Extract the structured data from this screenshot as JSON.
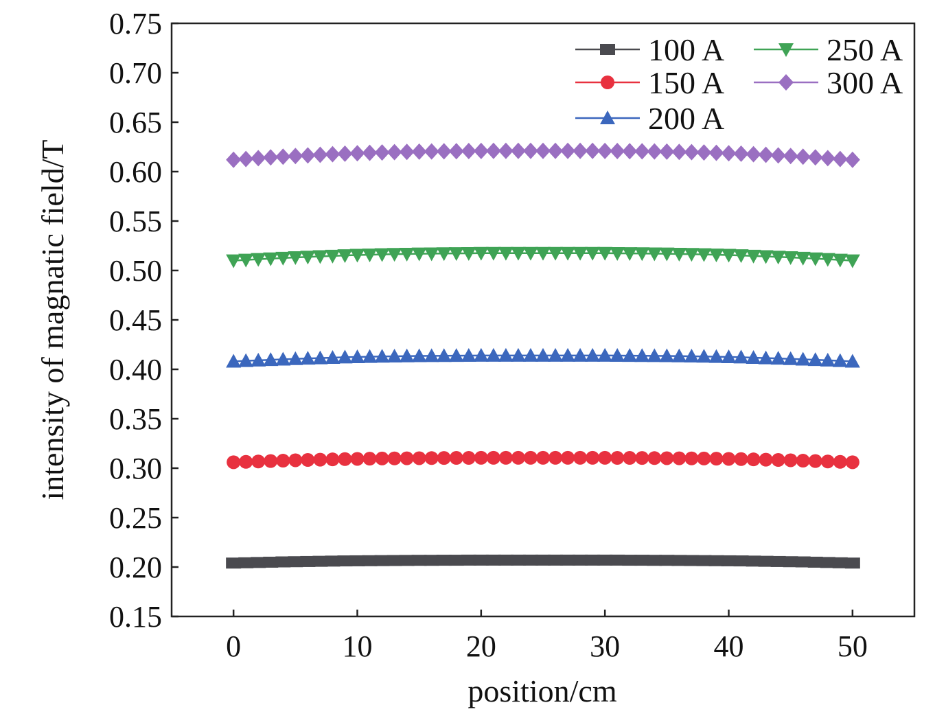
{
  "chart_data": {
    "type": "line",
    "title": "",
    "xlabel": "position/cm",
    "ylabel": "intensity of magnatic field/T",
    "xlim": [
      -5,
      55
    ],
    "ylim": [
      0.15,
      0.75
    ],
    "xticks": [
      0,
      10,
      20,
      30,
      40,
      50
    ],
    "xtick_labels": [
      "0",
      "10",
      "20",
      "30",
      "40",
      "50"
    ],
    "yticks": [
      0.15,
      0.2,
      0.25,
      0.3,
      0.35,
      0.4,
      0.45,
      0.5,
      0.55,
      0.6,
      0.65,
      0.7,
      0.75
    ],
    "ytick_labels": [
      "0.15",
      "0.20",
      "0.25",
      "0.30",
      "0.35",
      "0.40",
      "0.45",
      "0.50",
      "0.55",
      "0.60",
      "0.65",
      "0.70",
      "0.75"
    ],
    "grid": false,
    "legend_position": "top-right",
    "x": [
      0,
      1,
      2,
      3,
      4,
      5,
      6,
      7,
      8,
      9,
      10,
      11,
      12,
      13,
      14,
      15,
      16,
      17,
      18,
      19,
      20,
      21,
      22,
      23,
      24,
      25,
      26,
      27,
      28,
      29,
      30,
      31,
      32,
      33,
      34,
      35,
      36,
      37,
      38,
      39,
      40,
      41,
      42,
      43,
      44,
      45,
      46,
      47,
      48,
      49,
      50
    ],
    "series": [
      {
        "name": "100 A",
        "color": "#4a4a4f",
        "marker": "square",
        "values": [
          0.204,
          0.2043,
          0.2046,
          0.2049,
          0.2052,
          0.2054,
          0.2056,
          0.2058,
          0.206,
          0.2062,
          0.2063,
          0.2064,
          0.2065,
          0.2066,
          0.2067,
          0.2068,
          0.2068,
          0.2069,
          0.2069,
          0.207,
          0.207,
          0.207,
          0.207,
          0.207,
          0.207,
          0.207,
          0.207,
          0.207,
          0.207,
          0.207,
          0.207,
          0.207,
          0.2069,
          0.2069,
          0.2068,
          0.2068,
          0.2067,
          0.2066,
          0.2065,
          0.2064,
          0.2063,
          0.2062,
          0.206,
          0.2058,
          0.2056,
          0.2054,
          0.2052,
          0.2049,
          0.2046,
          0.2043,
          0.204
        ]
      },
      {
        "name": "150 A",
        "color": "#e8313f",
        "marker": "circle",
        "values": [
          0.306,
          0.3064,
          0.3068,
          0.3072,
          0.3076,
          0.308,
          0.3083,
          0.3086,
          0.3089,
          0.3092,
          0.3094,
          0.3096,
          0.3098,
          0.3099,
          0.31,
          0.3101,
          0.3102,
          0.3103,
          0.3104,
          0.3104,
          0.3105,
          0.3105,
          0.3105,
          0.3105,
          0.3105,
          0.3105,
          0.3105,
          0.3105,
          0.3105,
          0.3105,
          0.3105,
          0.3104,
          0.3104,
          0.3103,
          0.3102,
          0.3101,
          0.31,
          0.3099,
          0.3098,
          0.3096,
          0.3094,
          0.3092,
          0.3089,
          0.3086,
          0.3083,
          0.308,
          0.3076,
          0.3072,
          0.3068,
          0.3064,
          0.306
        ]
      },
      {
        "name": "200 A",
        "color": "#3b67bd",
        "marker": "triangle-up",
        "values": [
          0.408,
          0.4086,
          0.4091,
          0.4096,
          0.4101,
          0.4106,
          0.411,
          0.4114,
          0.4118,
          0.4122,
          0.4125,
          0.4128,
          0.413,
          0.4132,
          0.4134,
          0.4135,
          0.4136,
          0.4137,
          0.4138,
          0.4139,
          0.414,
          0.414,
          0.414,
          0.414,
          0.414,
          0.414,
          0.414,
          0.414,
          0.414,
          0.414,
          0.414,
          0.4139,
          0.4138,
          0.4137,
          0.4136,
          0.4135,
          0.4134,
          0.4132,
          0.413,
          0.4128,
          0.4125,
          0.4122,
          0.4118,
          0.4114,
          0.411,
          0.4106,
          0.4101,
          0.4096,
          0.4091,
          0.4086,
          0.408
        ]
      },
      {
        "name": "250 A",
        "color": "#3fa355",
        "marker": "triangle-down",
        "values": [
          0.51,
          0.5107,
          0.5114,
          0.512,
          0.5126,
          0.5132,
          0.5137,
          0.5142,
          0.5147,
          0.5152,
          0.5156,
          0.5159,
          0.5162,
          0.5165,
          0.5167,
          0.5169,
          0.517,
          0.5172,
          0.5173,
          0.5174,
          0.5175,
          0.5175,
          0.5175,
          0.5175,
          0.5175,
          0.5175,
          0.5175,
          0.5175,
          0.5175,
          0.5175,
          0.5175,
          0.5174,
          0.5173,
          0.5172,
          0.517,
          0.5169,
          0.5167,
          0.5165,
          0.5162,
          0.5159,
          0.5156,
          0.5152,
          0.5147,
          0.5142,
          0.5137,
          0.5132,
          0.5126,
          0.512,
          0.5114,
          0.5107,
          0.51
        ]
      },
      {
        "name": "300 A",
        "color": "#9a6fc1",
        "marker": "diamond",
        "values": [
          0.612,
          0.6128,
          0.6136,
          0.6144,
          0.6151,
          0.6158,
          0.6164,
          0.617,
          0.6176,
          0.6181,
          0.6186,
          0.619,
          0.6194,
          0.6197,
          0.62,
          0.6202,
          0.6204,
          0.6206,
          0.6207,
          0.6208,
          0.6209,
          0.621,
          0.621,
          0.621,
          0.621,
          0.621,
          0.621,
          0.621,
          0.621,
          0.621,
          0.6209,
          0.6208,
          0.6207,
          0.6206,
          0.6204,
          0.6202,
          0.62,
          0.6197,
          0.6194,
          0.619,
          0.6186,
          0.6181,
          0.6176,
          0.617,
          0.6164,
          0.6158,
          0.6151,
          0.6144,
          0.6136,
          0.6128,
          0.612
        ]
      }
    ]
  }
}
